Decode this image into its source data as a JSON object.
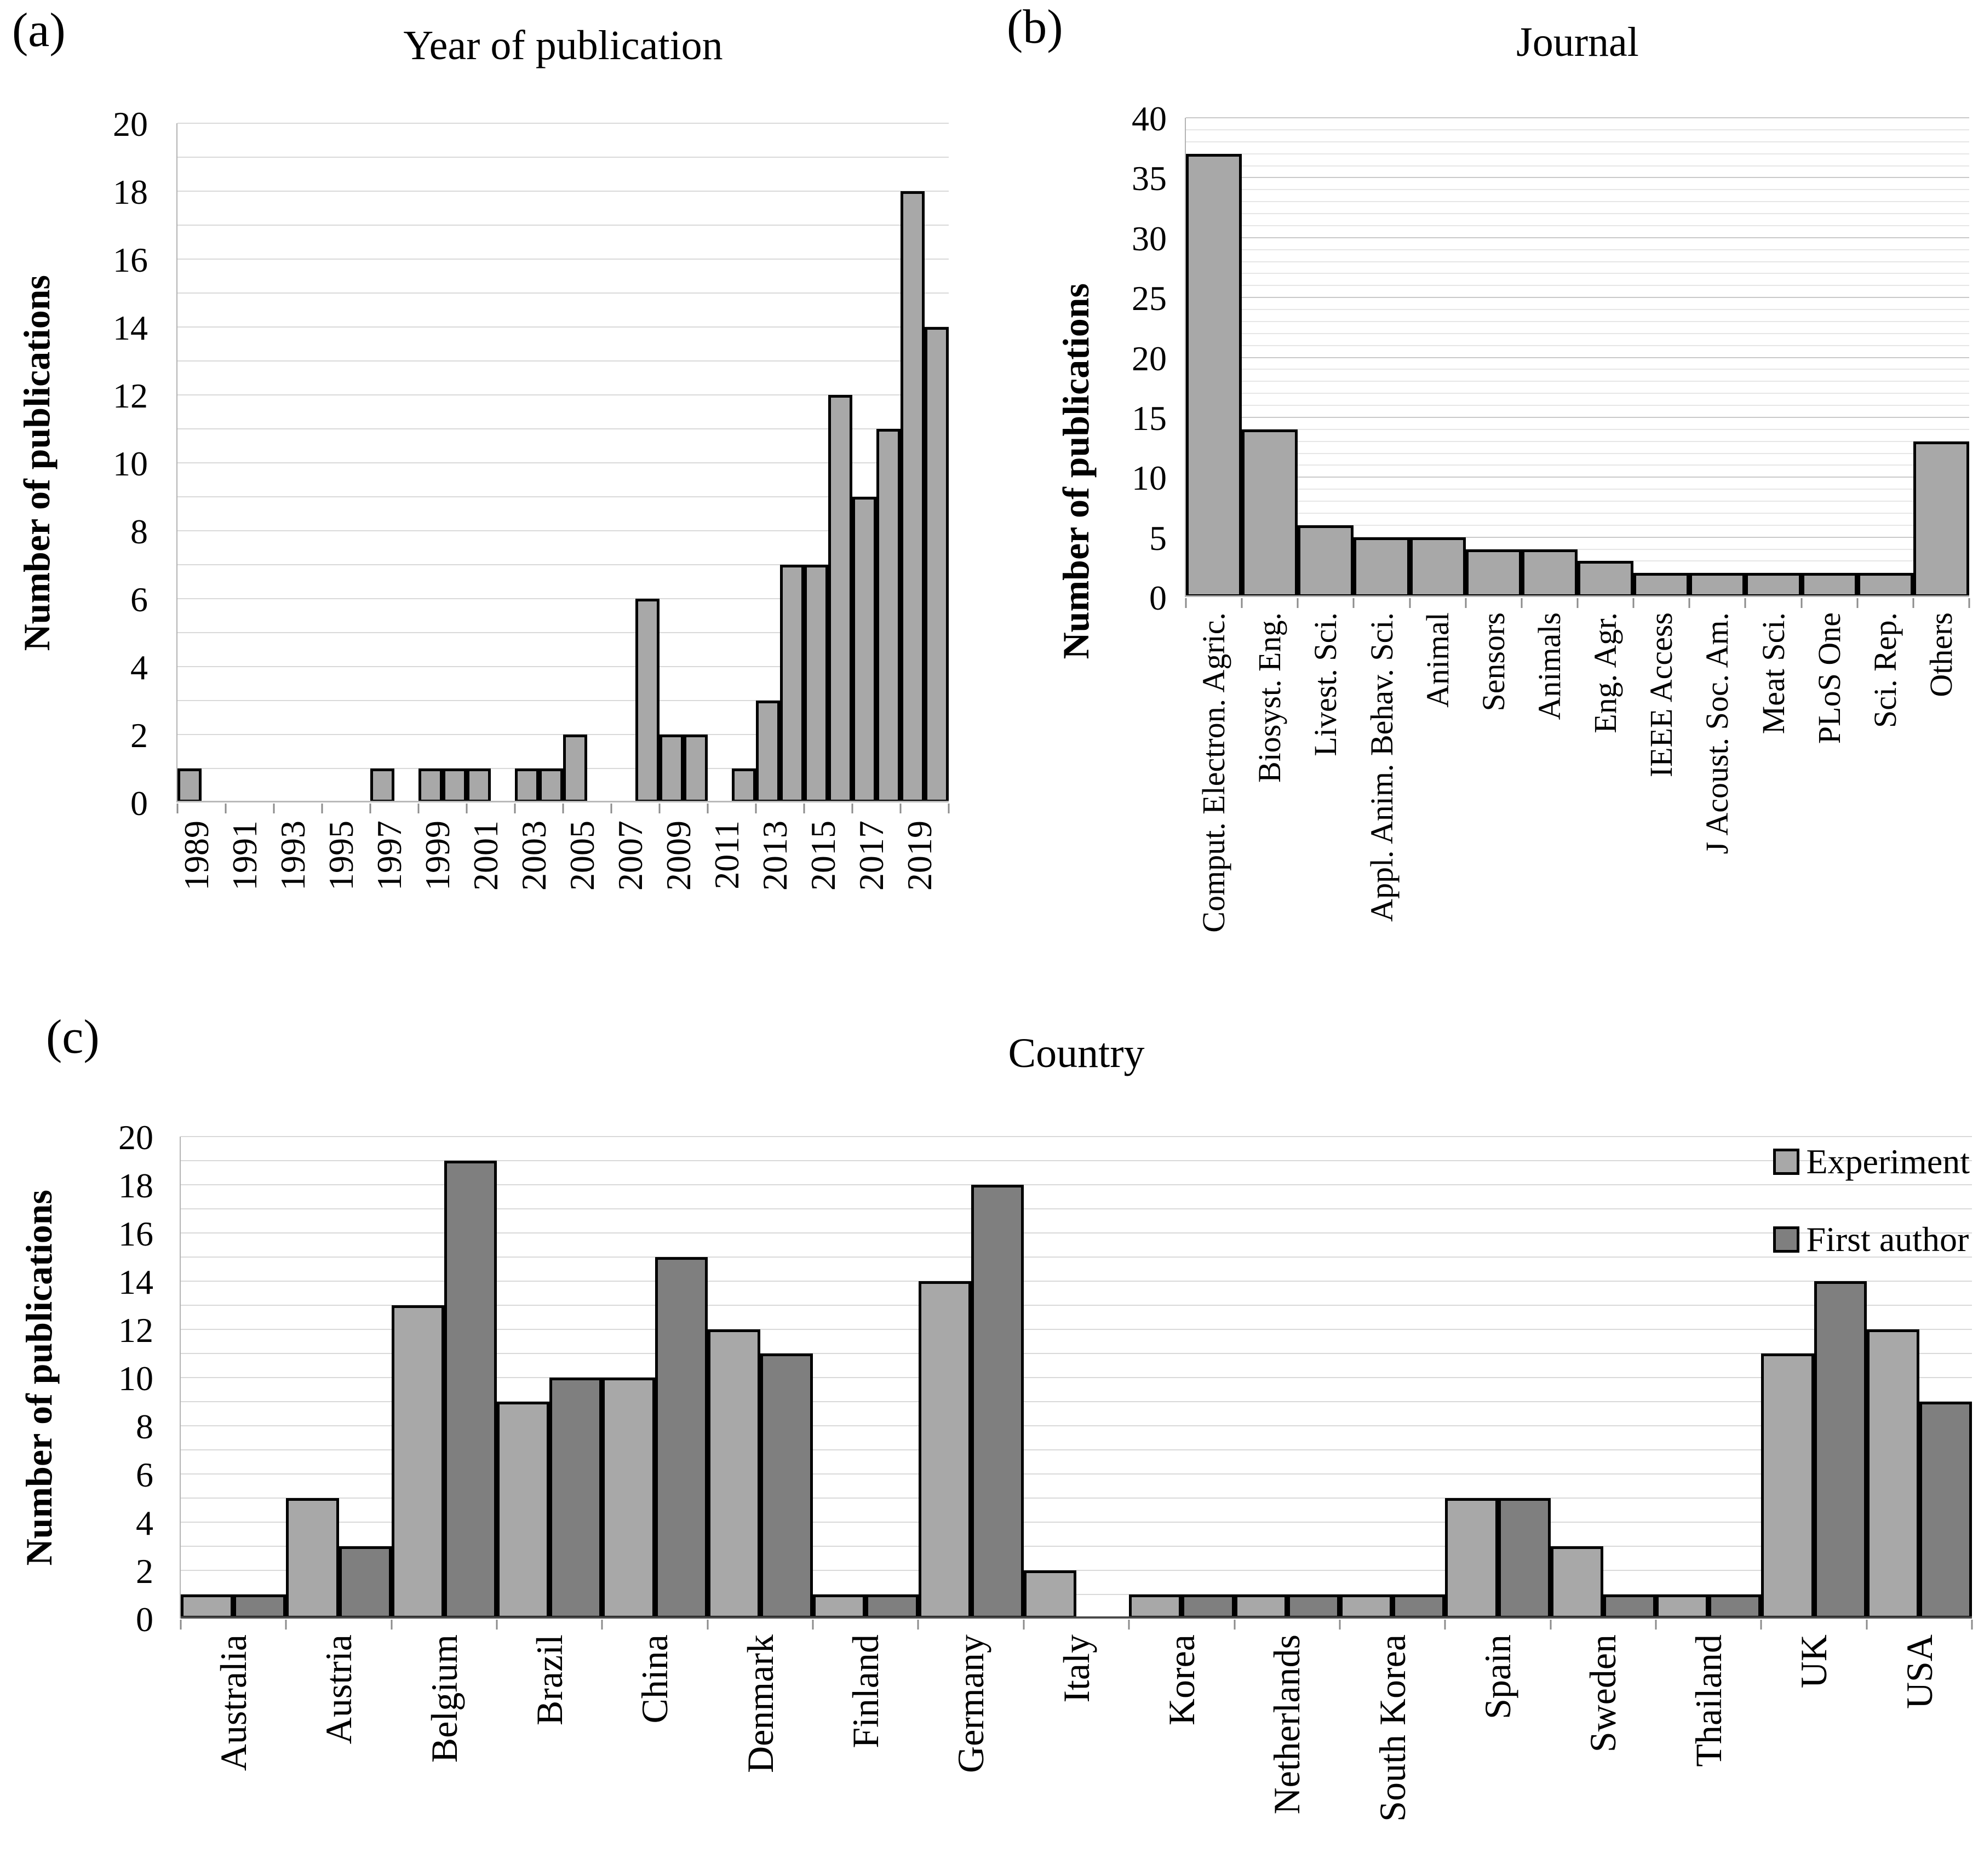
{
  "chart_data": [
    {
      "type": "bar",
      "panel_label": "(a)",
      "title": "Year of publication",
      "ylabel": "Number of publications",
      "categories": [
        "1989",
        "1990",
        "1991",
        "1992",
        "1993",
        "1994",
        "1995",
        "1996",
        "1997",
        "1998",
        "1999",
        "2000",
        "2001",
        "2002",
        "2003",
        "2004",
        "2005",
        "2006",
        "2007",
        "2008",
        "2009",
        "2010",
        "2011",
        "2012",
        "2013",
        "2014",
        "2015",
        "2016",
        "2017",
        "2018",
        "2019",
        "2020"
      ],
      "values": [
        1,
        0,
        0,
        0,
        0,
        0,
        0,
        0,
        1,
        0,
        1,
        1,
        1,
        0,
        1,
        1,
        2,
        0,
        0,
        6,
        2,
        2,
        0,
        1,
        3,
        7,
        7,
        12,
        9,
        11,
        18,
        14
      ],
      "visible_x_tick_labels": [
        "1989",
        "1991",
        "1993",
        "1995",
        "1997",
        "1999",
        "2001",
        "2003",
        "2005",
        "2007",
        "2009",
        "2011",
        "2013",
        "2015",
        "2017",
        "2019"
      ],
      "ylim": [
        0,
        20
      ],
      "ytick_step": 2,
      "grid_step": 1,
      "xlabel_every": 2,
      "xtick_every": 2,
      "bar_color": "#a8a8a8",
      "grid": "on",
      "legend_position": "none"
    },
    {
      "type": "bar",
      "panel_label": "(b)",
      "title": "Journal",
      "ylabel": "Number of publications",
      "categories": [
        "Comput. Electron. Agric.",
        "Biosyst. Eng.",
        "Livest. Sci.",
        "Appl. Anim. Behav. Sci.",
        "Animal",
        "Sensors",
        "Animals",
        "Eng. Agr.",
        "IEEE Access",
        "J Acoust. Soc. Am.",
        "Meat Sci.",
        "PLoS One",
        "Sci. Rep.",
        "Others"
      ],
      "values": [
        37,
        14,
        6,
        5,
        5,
        4,
        4,
        3,
        2,
        2,
        2,
        2,
        2,
        13
      ],
      "ylim": [
        0,
        40
      ],
      "ytick_step": 5,
      "grid_step": 1,
      "major_grid_step": 5,
      "xlabel_every": 1,
      "xtick_every": 1,
      "bar_color": "#a8a8a8",
      "grid": "on",
      "legend_position": "none"
    },
    {
      "type": "bar",
      "panel_label": "(c)",
      "title": "Country",
      "ylabel": "Number of publications",
      "categories": [
        "Australia",
        "Austria",
        "Belgium",
        "Brazil",
        "China",
        "Denmark",
        "Finland",
        "Germany",
        "Italy",
        "Korea",
        "Netherlands",
        "South Korea",
        "Spain",
        "Sweden",
        "Thailand",
        "UK",
        "USA"
      ],
      "series": [
        {
          "name": "Experiment",
          "color": "#a8a8a8",
          "values": [
            1,
            5,
            13,
            9,
            10,
            12,
            1,
            14,
            2,
            1,
            1,
            1,
            5,
            3,
            1,
            11,
            12
          ]
        },
        {
          "name": "First author",
          "color": "#7f7f7f",
          "values": [
            1,
            3,
            19,
            10,
            15,
            11,
            1,
            18,
            0,
            1,
            1,
            1,
            5,
            1,
            1,
            14,
            9
          ]
        }
      ],
      "ylim": [
        0,
        20
      ],
      "ytick_step": 2,
      "grid_step": 1,
      "xlabel_every": 1,
      "xtick_every": 1,
      "grid": "on",
      "legend_position": "top-right"
    }
  ]
}
